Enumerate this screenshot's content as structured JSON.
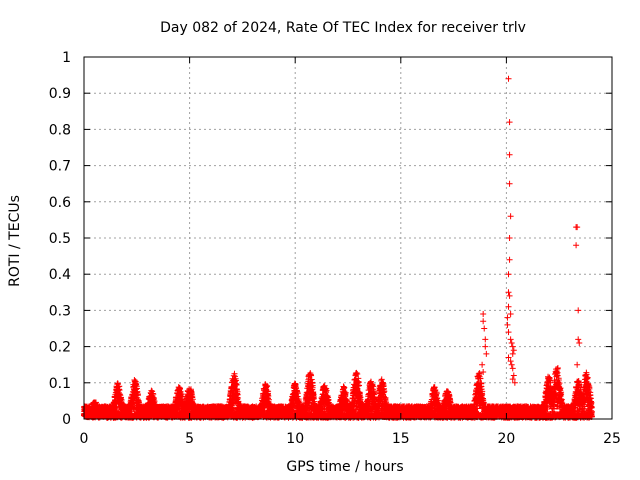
{
  "chart_data": {
    "type": "scatter",
    "title": "Day 082 of 2024, Rate Of TEC Index for receiver trlv",
    "xlabel": "GPS time / hours",
    "ylabel": "ROTI / TECUs",
    "xlim": [
      0,
      25
    ],
    "ylim": [
      0,
      1
    ],
    "xticks": [
      0,
      5,
      10,
      15,
      20,
      25
    ],
    "yticks": [
      0,
      0.1,
      0.2,
      0.3,
      0.4,
      0.5,
      0.6,
      0.7,
      0.8,
      0.9,
      1
    ],
    "grid": true,
    "marker": "+",
    "color": "#ff0000",
    "series": [
      {
        "name": "ROTI",
        "peaks": [
          [
            0.5,
            0.05
          ],
          [
            1.6,
            0.1
          ],
          [
            2.4,
            0.11
          ],
          [
            3.2,
            0.08
          ],
          [
            4.5,
            0.09
          ],
          [
            5.0,
            0.09
          ],
          [
            7.1,
            0.13
          ],
          [
            8.6,
            0.1
          ],
          [
            10.0,
            0.1
          ],
          [
            10.7,
            0.13
          ],
          [
            11.4,
            0.1
          ],
          [
            12.3,
            0.09
          ],
          [
            12.9,
            0.13
          ],
          [
            13.6,
            0.11
          ],
          [
            14.1,
            0.11
          ],
          [
            16.6,
            0.09
          ],
          [
            17.2,
            0.08
          ],
          [
            18.7,
            0.13
          ],
          [
            22.0,
            0.12
          ],
          [
            22.4,
            0.15
          ],
          [
            23.4,
            0.11
          ],
          [
            23.8,
            0.13
          ]
        ],
        "x": [
          18.9,
          18.9,
          18.95,
          19.0,
          19.0,
          19.05,
          18.85,
          18.9,
          20.1,
          20.15,
          20.15,
          20.15,
          20.2,
          20.15,
          20.15,
          20.1,
          20.1,
          20.15,
          20.1,
          20.2,
          20.05,
          20.05,
          20.1,
          20.2,
          20.25,
          20.3,
          20.35,
          20.3,
          20.1,
          20.2,
          20.25,
          20.3,
          20.35,
          20.3,
          20.4,
          23.3,
          23.35,
          23.3,
          23.4,
          23.4,
          23.45,
          23.35
        ],
        "y": [
          0.29,
          0.27,
          0.25,
          0.22,
          0.2,
          0.18,
          0.15,
          0.13,
          0.94,
          0.82,
          0.73,
          0.65,
          0.56,
          0.5,
          0.44,
          0.4,
          0.35,
          0.34,
          0.31,
          0.29,
          0.28,
          0.26,
          0.24,
          0.22,
          0.21,
          0.2,
          0.19,
          0.18,
          0.17,
          0.16,
          0.15,
          0.14,
          0.12,
          0.11,
          0.1,
          0.53,
          0.53,
          0.48,
          0.3,
          0.22,
          0.21,
          0.15
        ]
      }
    ]
  }
}
